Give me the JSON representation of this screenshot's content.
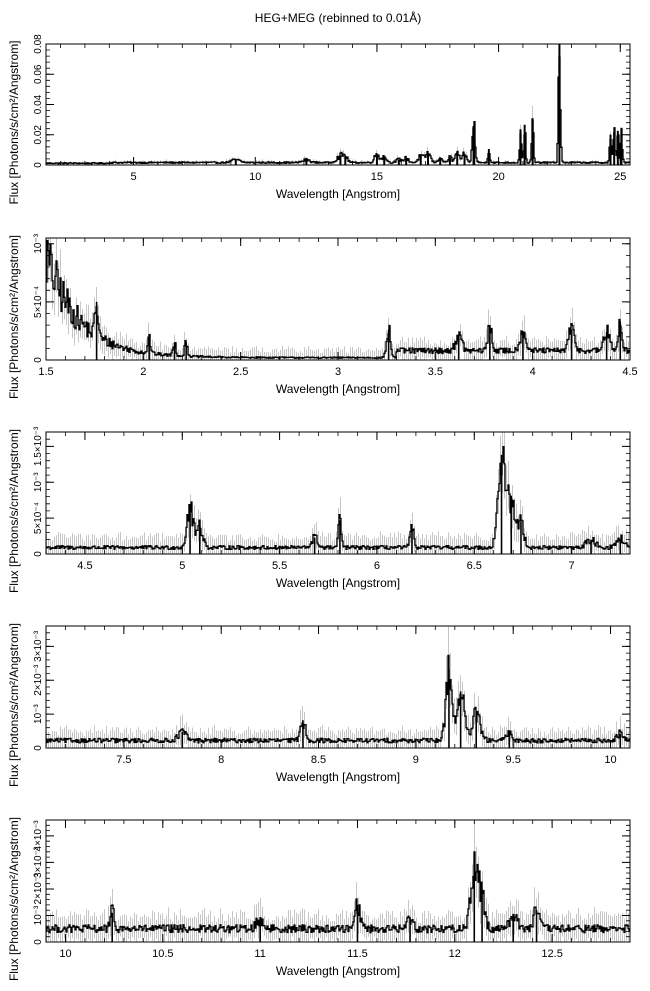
{
  "figure": {
    "title": "HEG+MEG (rebinned to 0.01Å)"
  },
  "chart_data": [
    {
      "type": "line",
      "xlabel": "Wavelength [Angstrom]",
      "ylabel": "Flux [Photons/s/cm²/Angstrom]",
      "xlim": [
        1.4,
        25.4
      ],
      "ylim": [
        0,
        0.08
      ],
      "x_ticks": [
        5,
        10,
        15,
        20,
        25
      ],
      "y_ticks": [
        {
          "v": 0,
          "t": "0"
        },
        {
          "v": 0.02,
          "t": "0.02"
        },
        {
          "v": 0.04,
          "t": "0.04"
        },
        {
          "v": 0.06,
          "t": "0.06"
        },
        {
          "v": 0.08,
          "t": "0.08"
        }
      ],
      "baseline": 0.0012,
      "baseline_tail_from": 4.0,
      "baseline_tail_level": 0.0016,
      "error_spread": 0.0008,
      "lines": [
        {
          "x": 9.2,
          "y": 0.0018,
          "w": 0.35
        },
        {
          "x": 12.1,
          "y": 0.0018,
          "w": 0.3
        },
        {
          "x": 13.5,
          "y": 0.0042,
          "w": 0.3
        },
        {
          "x": 13.7,
          "y": 0.0028,
          "w": 0.2
        },
        {
          "x": 15.0,
          "y": 0.0055,
          "w": 0.2
        },
        {
          "x": 15.3,
          "y": 0.0038,
          "w": 0.2
        },
        {
          "x": 15.9,
          "y": 0.002,
          "w": 0.2
        },
        {
          "x": 16.2,
          "y": 0.0028,
          "w": 0.2
        },
        {
          "x": 16.8,
          "y": 0.0042,
          "w": 0.2
        },
        {
          "x": 17.1,
          "y": 0.0062,
          "w": 0.2
        },
        {
          "x": 17.6,
          "y": 0.0035,
          "w": 0.15
        },
        {
          "x": 18.0,
          "y": 0.0035,
          "w": 0.15
        },
        {
          "x": 18.3,
          "y": 0.007,
          "w": 0.15
        },
        {
          "x": 18.6,
          "y": 0.0058,
          "w": 0.15
        },
        {
          "x": 18.97,
          "y": 0.0155,
          "w": 0.12
        },
        {
          "x": 19.0,
          "y": 0.0105,
          "w": 0.1
        },
        {
          "x": 19.6,
          "y": 0.009,
          "w": 0.08
        },
        {
          "x": 20.9,
          "y": 0.022,
          "w": 0.07
        },
        {
          "x": 21.07,
          "y": 0.025,
          "w": 0.07
        },
        {
          "x": 21.4,
          "y": 0.028,
          "w": 0.07
        },
        {
          "x": 22.5,
          "y": 0.0805,
          "w": 0.08
        },
        {
          "x": 24.6,
          "y": 0.0185,
          "w": 0.07
        },
        {
          "x": 24.75,
          "y": 0.02,
          "w": 0.07
        },
        {
          "x": 24.9,
          "y": 0.021,
          "w": 0.07
        },
        {
          "x": 25.05,
          "y": 0.023,
          "w": 0.07
        }
      ]
    },
    {
      "type": "line",
      "xlabel": "Wavelength [Angstrom]",
      "ylabel": "Flux [Photons/s/cm²/Angstrom]",
      "xlim": [
        1.5,
        4.5
      ],
      "ylim": [
        0,
        0.00105
      ],
      "x_ticks": [
        1.5,
        2,
        2.5,
        3,
        3.5,
        4,
        4.5
      ],
      "y_ticks": [
        {
          "v": 0,
          "t": "0"
        },
        {
          "v": 0.0005,
          "t": "5×10⁻⁴"
        },
        {
          "v": 0.001,
          "t": "10⁻³"
        }
      ],
      "baseline": 2e-05,
      "baseline_tail_from": 3.3,
      "baseline_tail_level": 8e-05,
      "error_spread": 6e-05,
      "decay": {
        "amp": 0.00088,
        "x0": 1.5,
        "tau": 0.17
      },
      "lines": [
        {
          "x": 1.76,
          "y": 0.00029,
          "w": 0.015
        },
        {
          "x": 2.03,
          "y": 0.00013,
          "w": 0.015
        },
        {
          "x": 2.16,
          "y": 0.00011,
          "w": 0.015
        },
        {
          "x": 2.22,
          "y": 0.00012,
          "w": 0.015
        },
        {
          "x": 3.26,
          "y": 0.00024,
          "w": 0.02
        },
        {
          "x": 3.62,
          "y": 0.00014,
          "w": 0.03
        },
        {
          "x": 3.78,
          "y": 0.00022,
          "w": 0.02
        },
        {
          "x": 3.95,
          "y": 0.00017,
          "w": 0.03
        },
        {
          "x": 4.2,
          "y": 0.00018,
          "w": 0.03
        },
        {
          "x": 4.38,
          "y": 0.00016,
          "w": 0.03
        },
        {
          "x": 4.45,
          "y": 0.00025,
          "w": 0.02
        }
      ]
    },
    {
      "type": "line",
      "xlabel": "Wavelength [Angstrom]",
      "ylabel": "Flux [Photons/s/cm²/Angstrom]",
      "xlim": [
        4.3,
        7.3
      ],
      "ylim": [
        0,
        0.0017
      ],
      "x_ticks": [
        4.5,
        5,
        5.5,
        6,
        6.5,
        7
      ],
      "y_ticks": [
        {
          "v": 0,
          "t": "0"
        },
        {
          "v": 0.0005,
          "t": "5×10⁻⁴"
        },
        {
          "v": 0.001,
          "t": "10⁻³"
        },
        {
          "v": 0.0015,
          "t": "1.5×10⁻³"
        }
      ],
      "baseline": 9e-05,
      "error_spread": 0.00012,
      "lines": [
        {
          "x": 5.04,
          "y": 0.00058,
          "w": 0.03
        },
        {
          "x": 5.09,
          "y": 0.00032,
          "w": 0.03
        },
        {
          "x": 5.68,
          "y": 0.00014,
          "w": 0.03
        },
        {
          "x": 5.81,
          "y": 0.00038,
          "w": 0.015
        },
        {
          "x": 6.18,
          "y": 0.00024,
          "w": 0.02
        },
        {
          "x": 6.64,
          "y": 0.00128,
          "w": 0.035
        },
        {
          "x": 6.69,
          "y": 0.0007,
          "w": 0.035
        },
        {
          "x": 6.74,
          "y": 0.00035,
          "w": 0.03
        },
        {
          "x": 7.1,
          "y": 0.0001,
          "w": 0.05
        },
        {
          "x": 7.25,
          "y": 0.00012,
          "w": 0.04
        }
      ]
    },
    {
      "type": "line",
      "xlabel": "Wavelength [Angstrom]",
      "ylabel": "Flux [Photons/s/cm²/Angstrom]",
      "xlim": [
        7.1,
        10.1
      ],
      "ylim": [
        0,
        0.0036
      ],
      "x_ticks": [
        7.5,
        8,
        8.5,
        9,
        9.5,
        10
      ],
      "y_ticks": [
        {
          "v": 0,
          "t": "0"
        },
        {
          "v": 0.001,
          "t": "10⁻³"
        },
        {
          "v": 0.002,
          "t": "2×10⁻³"
        },
        {
          "v": 0.003,
          "t": "3×10⁻³"
        }
      ],
      "baseline": 0.00022,
      "error_spread": 0.00022,
      "lines": [
        {
          "x": 7.8,
          "y": 0.00025,
          "w": 0.04
        },
        {
          "x": 8.42,
          "y": 0.0006,
          "w": 0.025
        },
        {
          "x": 9.17,
          "y": 0.0021,
          "w": 0.03
        },
        {
          "x": 9.23,
          "y": 0.00145,
          "w": 0.035
        },
        {
          "x": 9.31,
          "y": 0.00075,
          "w": 0.04
        },
        {
          "x": 9.48,
          "y": 0.00022,
          "w": 0.03
        },
        {
          "x": 10.05,
          "y": 0.0002,
          "w": 0.03
        }
      ]
    },
    {
      "type": "line",
      "xlabel": "Wavelength [Angstrom]",
      "ylabel": "Flux [Photons/s/cm²/Angstrom]",
      "xlim": [
        9.9,
        12.9
      ],
      "ylim": [
        0,
        0.0046
      ],
      "x_ticks": [
        10,
        10.5,
        11,
        11.5,
        12,
        12.5
      ],
      "y_ticks": [
        {
          "v": 0,
          "t": "0"
        },
        {
          "v": 0.001,
          "t": "10⁻³"
        },
        {
          "v": 0.002,
          "t": "2×10⁻³"
        },
        {
          "v": 0.003,
          "t": "3×10⁻³"
        },
        {
          "v": 0.004,
          "t": "4×10⁻³"
        }
      ],
      "baseline": 0.0005,
      "error_spread": 0.00035,
      "lines": [
        {
          "x": 10.24,
          "y": 0.0006,
          "w": 0.02
        },
        {
          "x": 11.0,
          "y": 0.0003,
          "w": 0.04
        },
        {
          "x": 11.5,
          "y": 0.0009,
          "w": 0.03
        },
        {
          "x": 11.77,
          "y": 0.0004,
          "w": 0.03
        },
        {
          "x": 12.1,
          "y": 0.0025,
          "w": 0.035
        },
        {
          "x": 12.14,
          "y": 0.0012,
          "w": 0.03
        },
        {
          "x": 12.3,
          "y": 0.0004,
          "w": 0.05
        },
        {
          "x": 12.42,
          "y": 0.0007,
          "w": 0.03
        }
      ]
    }
  ]
}
